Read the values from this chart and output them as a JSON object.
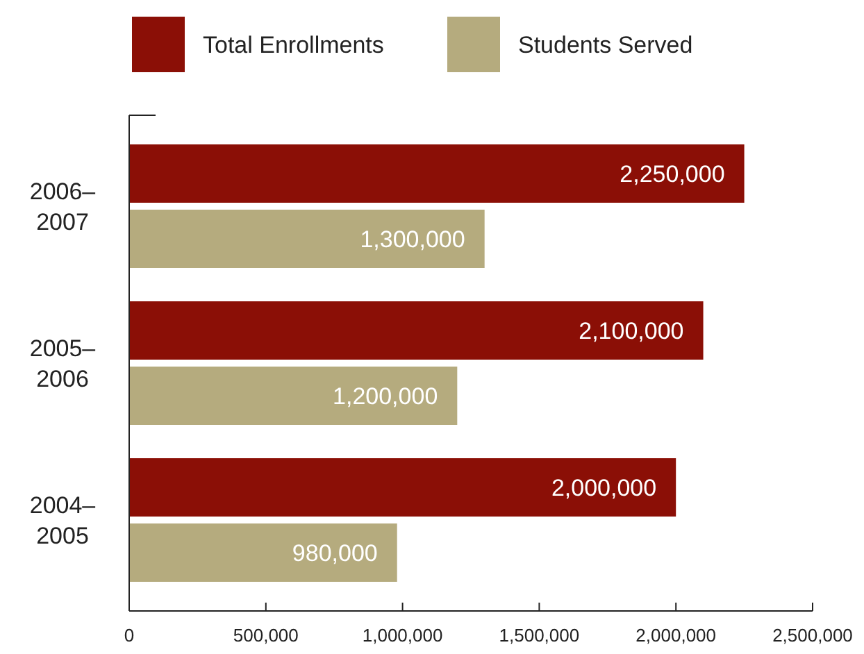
{
  "chart_data": {
    "type": "bar",
    "orientation": "horizontal",
    "categories": [
      "2006–2007",
      "2005–2006",
      "2004–2005"
    ],
    "series": [
      {
        "name": "Total Enrollments",
        "color": "#8b0f06",
        "values": [
          2250000,
          2100000,
          2000000
        ],
        "value_labels": [
          "2,250,000",
          "2,100,000",
          "2,000,000"
        ]
      },
      {
        "name": "Students Served",
        "color": "#b5ab7e",
        "values": [
          1300000,
          1200000,
          980000
        ],
        "value_labels": [
          "1,300,000",
          "1,200,000",
          "980,000"
        ]
      }
    ],
    "xlim": [
      0,
      2500000
    ],
    "xticks": [
      {
        "value": 0,
        "label": "0"
      },
      {
        "value": 500000,
        "label": "500,000"
      },
      {
        "value": 1000000,
        "label": "1,000,000"
      },
      {
        "value": 1500000,
        "label": "1,500,000"
      },
      {
        "value": 2000000,
        "label": "2,000,000"
      },
      {
        "value": 2500000,
        "label": "2,500,000"
      }
    ],
    "legend": "top",
    "grid": false
  }
}
